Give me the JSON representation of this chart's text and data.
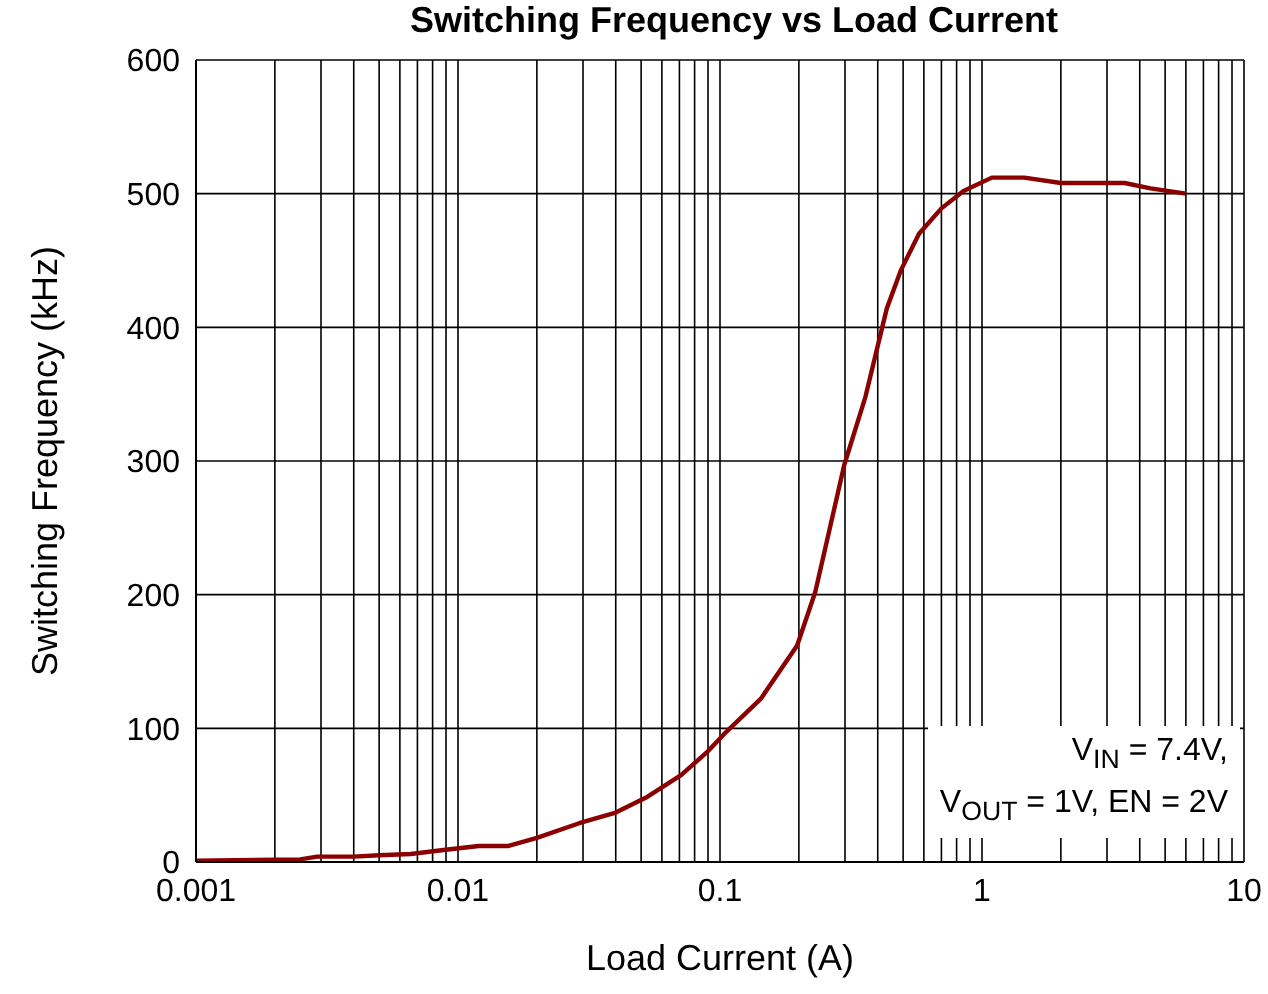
{
  "chart_data": {
    "type": "line",
    "title": "Switching Frequency vs Load Current",
    "xlabel": "Load Current (A)",
    "ylabel": "Switching Frequency (kHz)",
    "annotations": [
      "V$_{IN}$ = 7.4V,",
      "V$_{OUT}$ = 1V, EN = 2V"
    ],
    "log": "x",
    "grid": true,
    "legend": false,
    "marker": "none",
    "line_style": "solid",
    "xlim": [
      0.001,
      10
    ],
    "xticks": [
      0.001,
      {
        "value": 0.002,
        "label": null
      },
      {
        "value": 0.003,
        "label": null
      },
      {
        "value": 0.004,
        "label": null
      },
      {
        "value": 0.005,
        "label": null
      },
      {
        "value": 0.006,
        "label": null
      },
      {
        "value": 0.007,
        "label": null
      },
      {
        "value": 0.008,
        "label": null
      },
      {
        "value": 0.009,
        "label": null
      },
      0.01,
      {
        "value": 0.02,
        "label": null
      },
      {
        "value": 0.03,
        "label": null
      },
      {
        "value": 0.04,
        "label": null
      },
      {
        "value": 0.05,
        "label": null
      },
      {
        "value": 0.06,
        "label": null
      },
      {
        "value": 0.07,
        "label": null
      },
      {
        "value": 0.08,
        "label": null
      },
      {
        "value": 0.09,
        "label": null
      },
      0.1,
      {
        "value": 0.2,
        "label": null
      },
      {
        "value": 0.3,
        "label": null
      },
      {
        "value": 0.4,
        "label": null
      },
      {
        "value": 0.5,
        "label": null
      },
      {
        "value": 0.6,
        "label": null
      },
      {
        "value": 0.7,
        "label": null
      },
      {
        "value": 0.8,
        "label": null
      },
      {
        "value": 0.9,
        "label": null
      },
      1,
      {
        "value": 2,
        "label": null
      },
      {
        "value": 3,
        "label": null
      },
      {
        "value": 4,
        "label": null
      },
      {
        "value": 5,
        "label": null
      },
      {
        "value": 6,
        "label": null
      },
      {
        "value": 7,
        "label": null
      },
      {
        "value": 8,
        "label": null
      },
      {
        "value": 9,
        "label": null
      },
      10
    ],
    "ylim": [
      0,
      600
    ],
    "yticks": [
      0,
      100,
      200,
      300,
      400,
      500,
      600
    ],
    "series": [
      {
        "color": "#8b0000",
        "x": [
          0.001,
          0.0025,
          0.0029,
          0.004,
          0.005,
          0.0066,
          0.0088,
          0.012,
          0.0156,
          0.02,
          0.029,
          0.04,
          0.052,
          0.071,
          0.089,
          0.104,
          0.143,
          0.197,
          0.231,
          0.298,
          0.359,
          0.433,
          0.491,
          0.575,
          0.7,
          0.85,
          1.09,
          1.45,
          2,
          3,
          3.5,
          4.4,
          6
        ],
        "values": [
          1,
          2,
          4,
          4,
          5,
          6,
          9,
          12,
          12,
          18,
          29,
          37,
          48,
          65,
          82,
          96,
          122,
          162,
          202,
          297,
          348,
          414,
          443,
          470,
          489,
          502,
          512,
          512,
          508,
          508,
          508,
          504,
          500
        ]
      }
    ]
  }
}
